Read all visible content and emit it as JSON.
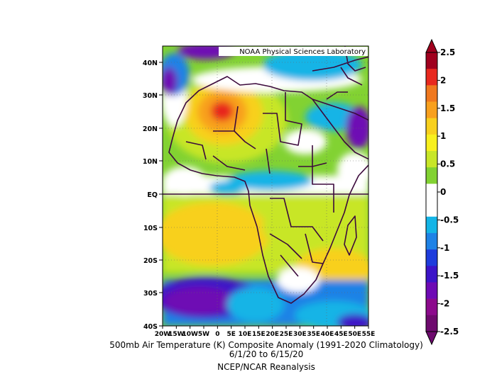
{
  "header": {
    "credit": "NOAA Physical Sciences Laboratory"
  },
  "axes": {
    "lat_labels": [
      "40N",
      "30N",
      "20N",
      "10N",
      "EQ",
      "10S",
      "20S",
      "30S",
      "40S"
    ],
    "lon_labels": [
      "20W",
      "15W",
      "10W",
      "5W",
      "0",
      "5E",
      "10E",
      "15E",
      "20E",
      "25E",
      "30E",
      "35E",
      "40E",
      "45E",
      "50E",
      "55E"
    ],
    "lat_range": [
      -40,
      45
    ],
    "lon_range": [
      -20,
      55
    ]
  },
  "caption": {
    "line1": "500mb Air Temperature (K) Composite Anomaly (1991-2020 Climatology)",
    "line2": "6/1/20  to 6/15/20",
    "line3": "NCEP/NCAR Reanalysis"
  },
  "colorbar": {
    "labels": [
      "2.5",
      "2",
      "1.5",
      "1",
      "0.5",
      "0",
      "-0.5",
      "-1",
      "-1.5",
      "-2",
      "-2.5"
    ],
    "colors": [
      "#a0001e",
      "#e8281e",
      "#f0781e",
      "#f8a01e",
      "#f8d01e",
      "#f8f01e",
      "#c8e628",
      "#82d232",
      "#ffffff",
      "#ffffff",
      "#14b4e6",
      "#1e82e6",
      "#1e3cdc",
      "#3c14c8",
      "#6e0ab4",
      "#8c0a8c",
      "#6e0a6e"
    ]
  },
  "colors": {
    "land_outline": "#3c0a3c",
    "zero_white": "#ffffff",
    "warm_peak": "#e8281e",
    "cold_peak": "#6e0ab4"
  }
}
